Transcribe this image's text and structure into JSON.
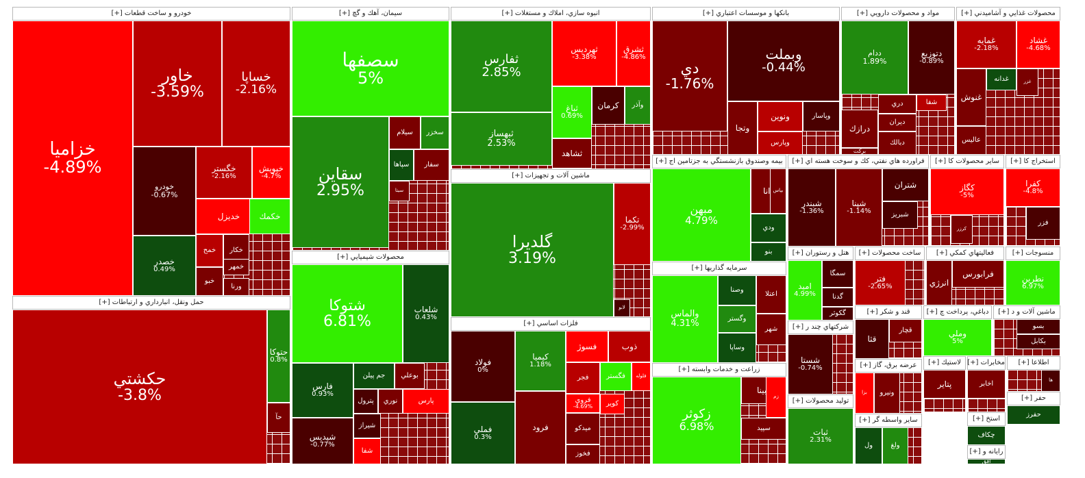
{
  "colors": {
    "deep_green": "#0e4d0e",
    "green": "#218a0f",
    "bright_green": "#33ee00",
    "dark_red": "#4a0000",
    "red": "#b80000",
    "bright_red": "#ff0000",
    "maroon": "#7a0000",
    "mid_red": "#a50a0a"
  },
  "chart_data": {
    "type": "treemap",
    "title": "",
    "sectors": [
      {
        "name": "خودرو و ساخت قطعات [+]",
        "tiles": [
          {
            "symbol": "خزاميا",
            "change": "-4.89%",
            "color": "bright_red"
          },
          {
            "symbol": "خاور",
            "change": "-3.59%",
            "color": "red"
          },
          {
            "symbol": "خساپا",
            "change": "-2.16%",
            "color": "red"
          },
          {
            "symbol": "خودرو",
            "change": "-0.67%",
            "color": "dark_red"
          },
          {
            "symbol": "خگستر",
            "change": "-2.16%",
            "color": "red"
          },
          {
            "symbol": "خپويش",
            "change": "-4.7%",
            "color": "bright_red"
          },
          {
            "symbol": "خديزل",
            "change": "",
            "color": "bright_red"
          },
          {
            "symbol": "خكمك",
            "change": "",
            "color": "bright_green"
          },
          {
            "symbol": "خصدر",
            "change": "0.49%",
            "color": "deep_green"
          },
          {
            "symbol": "خمح",
            "change": "",
            "color": "red"
          },
          {
            "symbol": "خكار",
            "change": "",
            "color": "maroon"
          },
          {
            "symbol": "خمهر",
            "change": "",
            "color": "maroon"
          },
          {
            "symbol": "ورنا",
            "change": "",
            "color": "maroon"
          },
          {
            "symbol": "خبو",
            "change": "",
            "color": "maroon"
          }
        ]
      },
      {
        "name": "حمل ونقل، انبارداري و ارتباطات [+]",
        "tiles": [
          {
            "symbol": "حكشتي",
            "change": "-3.8%",
            "color": "red"
          },
          {
            "symbol": "حتوكا",
            "change": "0.8%",
            "color": "green"
          },
          {
            "symbol": "حآ",
            "change": "",
            "color": "maroon"
          }
        ]
      },
      {
        "name": "سيمان، آهك و گچ [+]",
        "tiles": [
          {
            "symbol": "سصفها",
            "change": "5%",
            "color": "bright_green"
          },
          {
            "symbol": "سقاين",
            "change": "2.95%",
            "color": "green"
          },
          {
            "symbol": "سيلام",
            "change": "",
            "color": "maroon"
          },
          {
            "symbol": "سخزر",
            "change": "",
            "color": "green"
          },
          {
            "symbol": "سپاها",
            "change": "",
            "color": "deep_green"
          },
          {
            "symbol": "سفار",
            "change": "",
            "color": "maroon"
          },
          {
            "symbol": "سيتا",
            "change": "",
            "color": "maroon"
          }
        ]
      },
      {
        "name": "محصولات شيميايي [+]",
        "tiles": [
          {
            "symbol": "شتوكا",
            "change": "6.81%",
            "color": "bright_green"
          },
          {
            "symbol": "شلعاب",
            "change": "0.43%",
            "color": "deep_green"
          },
          {
            "symbol": "فارس",
            "change": "0.93%",
            "color": "deep_green"
          },
          {
            "symbol": "جم پيلن",
            "change": "",
            "color": "deep_green"
          },
          {
            "symbol": "بوعلي",
            "change": "",
            "color": "maroon"
          },
          {
            "symbol": "شپديس",
            "change": "-0.77%",
            "color": "dark_red"
          },
          {
            "symbol": "پترول",
            "change": "",
            "color": "dark_red"
          },
          {
            "symbol": "نوري",
            "change": "",
            "color": "maroon"
          },
          {
            "symbol": "پارس",
            "change": "",
            "color": "bright_red"
          },
          {
            "symbol": "شيراز",
            "change": "",
            "color": "dark_red"
          },
          {
            "symbol": "شفا",
            "change": "",
            "color": "bright_red"
          }
        ]
      },
      {
        "name": "انبوه سازي، املاك و مستغلات [+]",
        "tiles": [
          {
            "symbol": "ثفارس",
            "change": "2.85%",
            "color": "green"
          },
          {
            "symbol": "ثبهساز",
            "change": "2.53%",
            "color": "green"
          },
          {
            "symbol": "ثهرديس",
            "change": "-3.38%",
            "color": "bright_red"
          },
          {
            "symbol": "ثشرق",
            "change": "-4.86%",
            "color": "bright_red"
          },
          {
            "symbol": "ثباغ",
            "change": "0.69%",
            "color": "bright_green"
          },
          {
            "symbol": "كرمان",
            "change": "",
            "color": "dark_red"
          },
          {
            "symbol": "وآذر",
            "change": "",
            "color": "green"
          },
          {
            "symbol": "ثشاهد",
            "change": "",
            "color": "maroon"
          }
        ]
      },
      {
        "name": "ماشين آلات و تجهيزات [+]",
        "tiles": [
          {
            "symbol": "گلديرا",
            "change": "3.19%",
            "color": "green"
          },
          {
            "symbol": "تكما",
            "change": "-2.99%",
            "color": "red"
          },
          {
            "symbol": "لابو",
            "change": "",
            "color": "dark_red"
          }
        ]
      },
      {
        "name": "فلزات اساسي [+]",
        "tiles": [
          {
            "symbol": "فولاد",
            "change": "0%",
            "color": "dark_red"
          },
          {
            "symbol": "فملي",
            "change": "0.3%",
            "color": "deep_green"
          },
          {
            "symbol": "كيميا",
            "change": "1.18%",
            "color": "green"
          },
          {
            "symbol": "فسوژ",
            "change": "",
            "color": "bright_red"
          },
          {
            "symbol": "ذوب",
            "change": "",
            "color": "red"
          },
          {
            "symbol": "فجر",
            "change": "",
            "color": "red"
          },
          {
            "symbol": "فگستر",
            "change": "",
            "color": "bright_green"
          },
          {
            "symbol": "فلوله",
            "change": "",
            "color": "bright_red"
          },
          {
            "symbol": "فروي",
            "change": "-4.69%",
            "color": "bright_red"
          },
          {
            "symbol": "كوير",
            "change": "",
            "color": "bright_red"
          },
          {
            "symbol": "فرود",
            "change": "",
            "color": "maroon"
          },
          {
            "symbol": "ميدكو",
            "change": "",
            "color": "maroon"
          },
          {
            "symbol": "فخوز",
            "change": "",
            "color": "maroon"
          }
        ]
      },
      {
        "name": "بانكها و موسسات اعتباري [+]",
        "tiles": [
          {
            "symbol": "دي",
            "change": "-1.76%",
            "color": "maroon"
          },
          {
            "symbol": "وبملت",
            "change": "-0.44%",
            "color": "dark_red"
          },
          {
            "symbol": "ونوين",
            "change": "",
            "color": "red"
          },
          {
            "symbol": "وپاسار",
            "change": "",
            "color": "dark_red"
          },
          {
            "symbol": "وپارس",
            "change": "",
            "color": "red"
          },
          {
            "symbol": "وتجا",
            "change": "",
            "color": "maroon"
          }
        ]
      },
      {
        "name": "مواد و محصولات دارويي [+]",
        "tiles": [
          {
            "symbol": "ددام",
            "change": "1.89%",
            "color": "green"
          },
          {
            "symbol": "دتوزيع",
            "change": "-0.89%",
            "color": "dark_red"
          },
          {
            "symbol": "دري",
            "change": "",
            "color": "maroon"
          },
          {
            "symbol": "شفا",
            "change": "",
            "color": "red"
          },
          {
            "symbol": "درازك",
            "change": "",
            "color": "maroon"
          },
          {
            "symbol": "ديران",
            "change": "",
            "color": "maroon"
          },
          {
            "symbol": "دبالك",
            "change": "",
            "color": "maroon"
          },
          {
            "symbol": "بركت",
            "change": "",
            "color": "maroon"
          }
        ]
      },
      {
        "name": "محصولات غذايي و آشاميدني [+]",
        "tiles": [
          {
            "symbol": "غمايه",
            "change": "-2.18%",
            "color": "red"
          },
          {
            "symbol": "غشاد",
            "change": "-4.68%",
            "color": "bright_red"
          },
          {
            "symbol": "غنوش",
            "change": "",
            "color": "maroon"
          },
          {
            "symbol": "غدانه",
            "change": "",
            "color": "deep_green"
          },
          {
            "symbol": "غزر",
            "change": "",
            "color": "maroon"
          },
          {
            "symbol": "عاليس",
            "change": "",
            "color": "maroon"
          }
        ]
      },
      {
        "name": "بيمه وصندوق بازنشستگي به جزتامين اج [+]",
        "tiles": [
          {
            "symbol": "مبهن",
            "change": "4.79%",
            "color": "bright_green"
          },
          {
            "symbol": "دانا",
            "change": "",
            "color": "maroon"
          },
          {
            "symbol": "بپاس",
            "change": "",
            "color": "maroon"
          },
          {
            "symbol": "ودي",
            "change": "",
            "color": "deep_green"
          },
          {
            "symbol": "بنو",
            "change": "",
            "color": "deep_green"
          }
        ]
      },
      {
        "name": "سرمايه گذاريها [+]",
        "tiles": [
          {
            "symbol": "والماس",
            "change": "4.31%",
            "color": "bright_green"
          },
          {
            "symbol": "وصنا",
            "change": "",
            "color": "deep_green"
          },
          {
            "symbol": "اعتلا",
            "change": "",
            "color": "maroon"
          },
          {
            "symbol": "وگستر",
            "change": "",
            "color": "green"
          },
          {
            "symbol": "شهر",
            "change": "",
            "color": "maroon"
          },
          {
            "symbol": "وساپا",
            "change": "",
            "color": "deep_green"
          }
        ]
      },
      {
        "name": "زراعت و خدمات وابسته [+]",
        "tiles": [
          {
            "symbol": "زكوثر",
            "change": "6.98%",
            "color": "bright_green"
          },
          {
            "symbol": "زبينا",
            "change": "",
            "color": "maroon"
          },
          {
            "symbol": "سپيد",
            "change": "",
            "color": "maroon"
          },
          {
            "symbol": "زم",
            "change": "",
            "color": "bright_red"
          }
        ]
      },
      {
        "name": "فراورده هاي نفتي، كك و سوخت هسته اي [+]",
        "tiles": [
          {
            "symbol": "شبندر",
            "change": "-1.36%",
            "color": "dark_red"
          },
          {
            "symbol": "شپنا",
            "change": "-1.14%",
            "color": "maroon"
          },
          {
            "symbol": "شتران",
            "change": "",
            "color": "dark_red"
          },
          {
            "symbol": "شبريز",
            "change": "",
            "color": "dark_red"
          }
        ]
      },
      {
        "name": "هتل و رستوران [+]",
        "tiles": [
          {
            "symbol": "سمگا",
            "change": "",
            "color": "dark_red"
          },
          {
            "symbol": "گدنا",
            "change": "",
            "color": "dark_red"
          },
          {
            "symbol": "گكوثر",
            "change": "",
            "color": "dark_red"
          },
          {
            "symbol": "اميد",
            "change": "4.99%",
            "color": "bright_green"
          }
        ]
      },
      {
        "name": "شركتهاي چند ر [+]",
        "tiles": [
          {
            "symbol": "شستا",
            "change": "-0.74%",
            "color": "dark_red"
          }
        ]
      },
      {
        "name": "توليد محصولات [+]",
        "tiles": [
          {
            "symbol": "ثبات",
            "change": "2.31%",
            "color": "green"
          }
        ]
      },
      {
        "name": "ساخت محصولات [+]",
        "tiles": [
          {
            "symbol": "فتر",
            "change": "-2.65%",
            "color": "red"
          }
        ]
      },
      {
        "name": "فعاليتهاي كمكي [+]",
        "tiles": [
          {
            "symbol": "فرابورس",
            "change": "",
            "color": "maroon"
          },
          {
            "symbol": "انرژي",
            "change": "",
            "color": "maroon"
          }
        ]
      },
      {
        "name": "منسوجات [+]",
        "tiles": [
          {
            "symbol": "نطرين",
            "change": "6.97%",
            "color": "bright_green"
          }
        ]
      },
      {
        "name": "قند و شكر [+]",
        "tiles": [
          {
            "symbol": "قچار",
            "change": "",
            "color": "maroon"
          },
          {
            "symbol": "قثا",
            "change": "",
            "color": "dark_red"
          }
        ]
      },
      {
        "name": "دباغي، پرداخت چ [+]",
        "tiles": [
          {
            "symbol": "وملي",
            "change": "5%",
            "color": "bright_green"
          }
        ]
      },
      {
        "name": "ماشين آلات و د [+]",
        "tiles": [
          {
            "symbol": "بسو",
            "change": "",
            "color": "dark_red"
          },
          {
            "symbol": "بكابل",
            "change": "",
            "color": "dark_red"
          }
        ]
      },
      {
        "name": "سایر محصولات کا [+]",
        "tiles": [
          {
            "symbol": "كگاز",
            "change": "-5%",
            "color": "bright_red"
          },
          {
            "symbol": "كرزر",
            "change": "",
            "color": "maroon"
          }
        ]
      },
      {
        "name": "استخراج كا [+]",
        "tiles": [
          {
            "symbol": "كفرا",
            "change": "-4.8%",
            "color": "bright_red"
          },
          {
            "symbol": "فزر",
            "change": "",
            "color": "dark_red"
          }
        ]
      },
      {
        "name": "عرضه برق، گاز [+]",
        "tiles": [
          {
            "symbol": "ونيرو",
            "change": "",
            "color": "maroon"
          },
          {
            "symbol": "بزا",
            "change": "",
            "color": "bright_red"
          }
        ]
      },
      {
        "name": "لاستيك [+]",
        "tiles": [
          {
            "symbol": "پتاير",
            "change": "",
            "color": "maroon"
          }
        ]
      },
      {
        "name": "مخابرات [+]",
        "tiles": [
          {
            "symbol": "اخابر",
            "change": "",
            "color": "maroon"
          }
        ]
      },
      {
        "name": "اطلاعا [+]",
        "tiles": [
          {
            "symbol": "ها",
            "change": "",
            "color": "dark_red"
          }
        ]
      },
      {
        "name": "ساير واسطه گر [+]",
        "tiles": [
          {
            "symbol": "ولغ",
            "change": "",
            "color": "green"
          },
          {
            "symbol": "ول",
            "change": "",
            "color": "deep_green"
          }
        ]
      },
      {
        "name": "استخ [+]",
        "tiles": [
          {
            "symbol": "چكاف",
            "change": "",
            "color": "deep_green"
          }
        ]
      },
      {
        "name": "حفر [+]",
        "tiles": [
          {
            "symbol": "حفرز",
            "change": "",
            "color": "deep_green"
          }
        ]
      },
      {
        "name": "رايانه و [+]",
        "tiles": [
          {
            "symbol": "افق",
            "change": "",
            "color": "deep_green"
          }
        ]
      }
    ]
  }
}
